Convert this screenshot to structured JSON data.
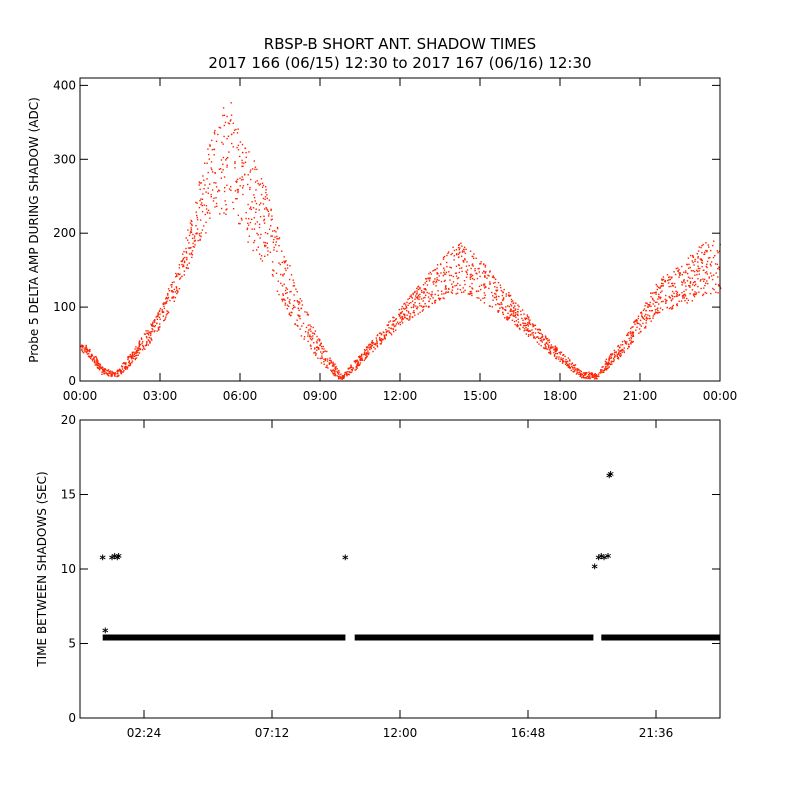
{
  "title": {
    "line1": "RBSP-B SHORT ANT. SHADOW TIMES",
    "line2": "2017 166 (06/15) 12:30 to 2017 167 (06/16) 12:30"
  },
  "colors": {
    "amp_points": "#ff2200",
    "interval_points": "#000000"
  },
  "chart_data": [
    {
      "type": "scatter",
      "name": "amplitude-panel",
      "ylabel": "Probe 5 DELTA AMP DURING SHADOW (ADC)",
      "xlabel": "",
      "x_unit": "hours",
      "xlim": [
        0,
        24
      ],
      "ylim": [
        0,
        410
      ],
      "xticks": [
        0,
        3,
        6,
        9,
        12,
        15,
        18,
        21,
        24
      ],
      "xtick_labels": [
        "00:00",
        "03:00",
        "06:00",
        "09:00",
        "12:00",
        "15:00",
        "18:00",
        "21:00",
        "00:00"
      ],
      "yticks": [
        0,
        100,
        200,
        300,
        400
      ],
      "ytick_labels": [
        "0",
        "100",
        "200",
        "300",
        "400"
      ],
      "envelope": {
        "x": [
          0.0,
          0.4,
          0.8,
          1.3,
          1.7,
          2.2,
          3.0,
          3.8,
          4.3,
          4.8,
          5.2,
          5.6,
          6.0,
          6.5,
          7.0,
          7.6,
          8.3,
          9.0,
          9.6,
          9.8,
          10.3,
          10.8,
          11.4,
          12.0,
          12.8,
          13.5,
          14.0,
          14.3,
          14.6,
          15.0,
          15.6,
          16.3,
          17.0,
          17.6,
          18.2,
          18.8,
          19.4,
          19.7,
          20.3,
          21.0,
          21.6,
          22.3,
          23.0,
          23.5,
          24.0
        ],
        "low": [
          42,
          30,
          10,
          5,
          15,
          35,
          70,
          130,
          180,
          205,
          220,
          230,
          205,
          175,
          150,
          105,
          60,
          25,
          5,
          2,
          15,
          35,
          55,
          75,
          95,
          110,
          118,
          120,
          118,
          110,
          95,
          75,
          55,
          38,
          20,
          5,
          3,
          15,
          35,
          65,
          90,
          100,
          110,
          120,
          115
        ],
        "high": [
          55,
          45,
          20,
          12,
          30,
          55,
          100,
          170,
          250,
          320,
          360,
          390,
          330,
          300,
          260,
          185,
          110,
          55,
          20,
          8,
          30,
          50,
          75,
          100,
          135,
          165,
          185,
          190,
          178,
          165,
          140,
          110,
          80,
          55,
          35,
          15,
          10,
          30,
          55,
          95,
          135,
          155,
          175,
          195,
          190
        ]
      }
    },
    {
      "type": "scatter",
      "name": "interval-panel",
      "ylabel": "TIME BETWEEN SHADOWS (SEC)",
      "xlabel": "",
      "x_unit": "hours",
      "xlim": [
        0,
        24
      ],
      "ylim": [
        0,
        20
      ],
      "xticks": [
        2.4,
        7.2,
        12.0,
        16.8,
        21.6
      ],
      "xtick_labels": [
        "02:24",
        "07:12",
        "12:00",
        "16:48",
        "21:36"
      ],
      "yticks": [
        0,
        5,
        10,
        15,
        20
      ],
      "ytick_labels": [
        "0",
        "5",
        "10",
        "15",
        "20"
      ],
      "baseline": {
        "value": 5.4,
        "segments": [
          [
            0.85,
            9.95
          ],
          [
            10.3,
            19.25
          ],
          [
            19.55,
            24.0
          ]
        ]
      },
      "outliers": {
        "x": [
          0.85,
          0.95,
          1.2,
          1.3,
          1.4,
          1.45,
          9.95,
          19.3,
          19.45,
          19.55,
          19.65,
          19.8,
          19.85,
          19.9
        ],
        "y": [
          10.7,
          5.8,
          10.7,
          10.8,
          10.7,
          10.8,
          10.7,
          10.1,
          10.7,
          10.8,
          10.7,
          10.8,
          16.2,
          16.3
        ]
      },
      "marker": "*"
    }
  ]
}
